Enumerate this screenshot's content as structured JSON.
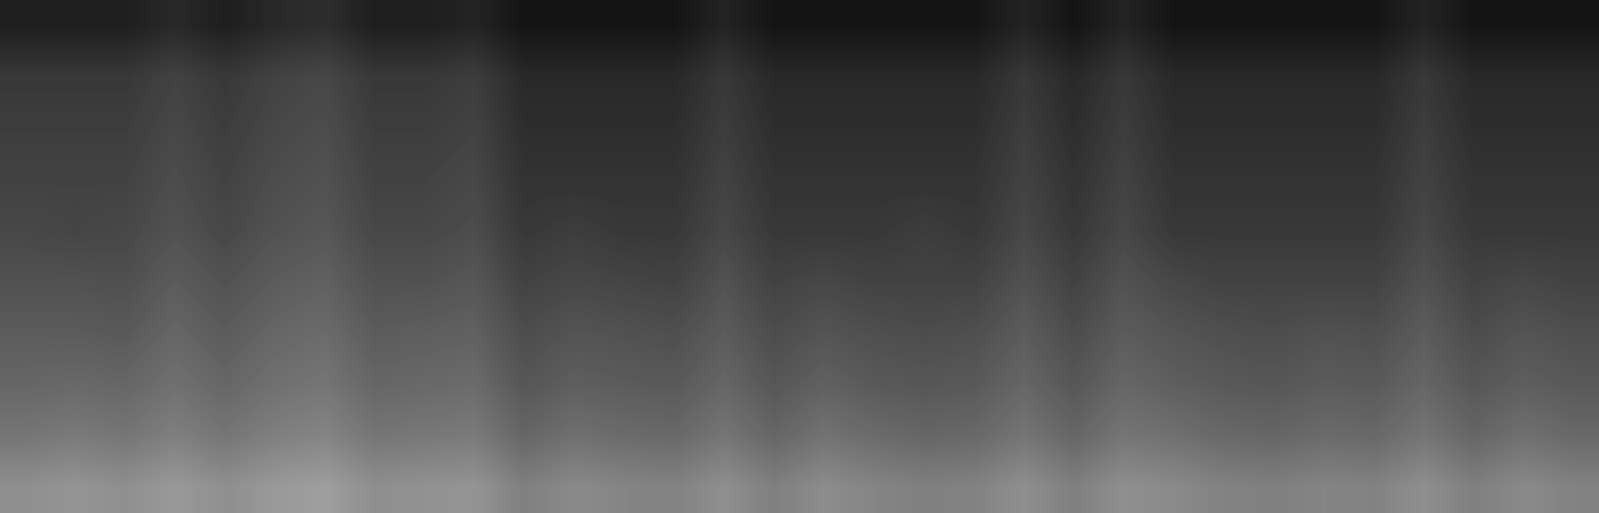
{
  "chart_data": {
    "type": "heatmap",
    "tick_labels": false,
    "color": "gray",
    "zlim": [
      0,
      100
    ],
    "cells": [
      [
        12,
        12,
        12,
        16,
        12,
        16,
        18,
        12,
        12,
        14,
        8,
        8,
        8,
        8,
        14,
        8,
        8,
        8,
        8,
        8,
        14,
        8,
        14,
        8,
        8,
        8,
        8,
        8,
        14,
        8,
        8,
        8
      ],
      [
        22,
        22,
        22,
        26,
        22,
        26,
        28,
        22,
        22,
        24,
        16,
        16,
        16,
        16,
        22,
        16,
        16,
        16,
        16,
        16,
        22,
        16,
        22,
        16,
        16,
        16,
        16,
        16,
        22,
        16,
        16,
        16
      ],
      [
        24,
        24,
        24,
        28,
        24,
        28,
        30,
        24,
        24,
        26,
        18,
        18,
        18,
        18,
        24,
        18,
        18,
        18,
        18,
        18,
        24,
        18,
        24,
        18,
        18,
        18,
        18,
        18,
        24,
        18,
        18,
        18
      ],
      [
        26,
        26,
        26,
        30,
        26,
        30,
        32,
        26,
        26,
        28,
        20,
        20,
        20,
        20,
        26,
        20,
        20,
        20,
        20,
        20,
        26,
        20,
        26,
        20,
        20,
        20,
        20,
        20,
        26,
        20,
        20,
        20
      ],
      [
        28,
        27,
        28,
        32,
        28,
        32,
        34,
        28,
        28,
        30,
        22,
        24,
        22,
        22,
        28,
        22,
        22,
        22,
        24,
        22,
        28,
        22,
        28,
        22,
        22,
        22,
        22,
        22,
        28,
        22,
        22,
        22
      ],
      [
        32,
        32,
        31,
        36,
        32,
        36,
        38,
        32,
        32,
        34,
        26,
        28,
        27,
        26,
        32,
        26,
        28,
        26,
        26,
        26,
        32,
        26,
        32,
        28,
        26,
        26,
        26,
        26,
        32,
        26,
        28,
        26
      ],
      [
        36,
        36,
        35,
        40,
        36,
        40,
        42,
        36,
        37,
        38,
        30,
        33,
        32,
        31,
        36,
        30,
        33,
        31,
        30,
        31,
        36,
        30,
        36,
        33,
        31,
        30,
        32,
        31,
        36,
        30,
        33,
        31
      ],
      [
        40,
        41,
        40,
        44,
        40,
        44,
        46,
        40,
        41,
        42,
        34,
        37,
        36,
        35,
        40,
        34,
        38,
        35,
        34,
        35,
        40,
        34,
        40,
        37,
        35,
        34,
        36,
        35,
        40,
        34,
        37,
        35
      ],
      [
        46,
        48,
        46,
        50,
        46,
        50,
        52,
        46,
        47,
        48,
        40,
        44,
        42,
        41,
        46,
        40,
        45,
        42,
        40,
        41,
        46,
        40,
        46,
        44,
        41,
        40,
        42,
        41,
        46,
        40,
        44,
        41
      ],
      [
        56,
        58,
        56,
        60,
        56,
        60,
        62,
        56,
        57,
        58,
        50,
        54,
        52,
        51,
        56,
        50,
        55,
        52,
        50,
        51,
        56,
        50,
        56,
        54,
        51,
        50,
        52,
        51,
        56,
        50,
        54,
        51
      ]
    ]
  }
}
